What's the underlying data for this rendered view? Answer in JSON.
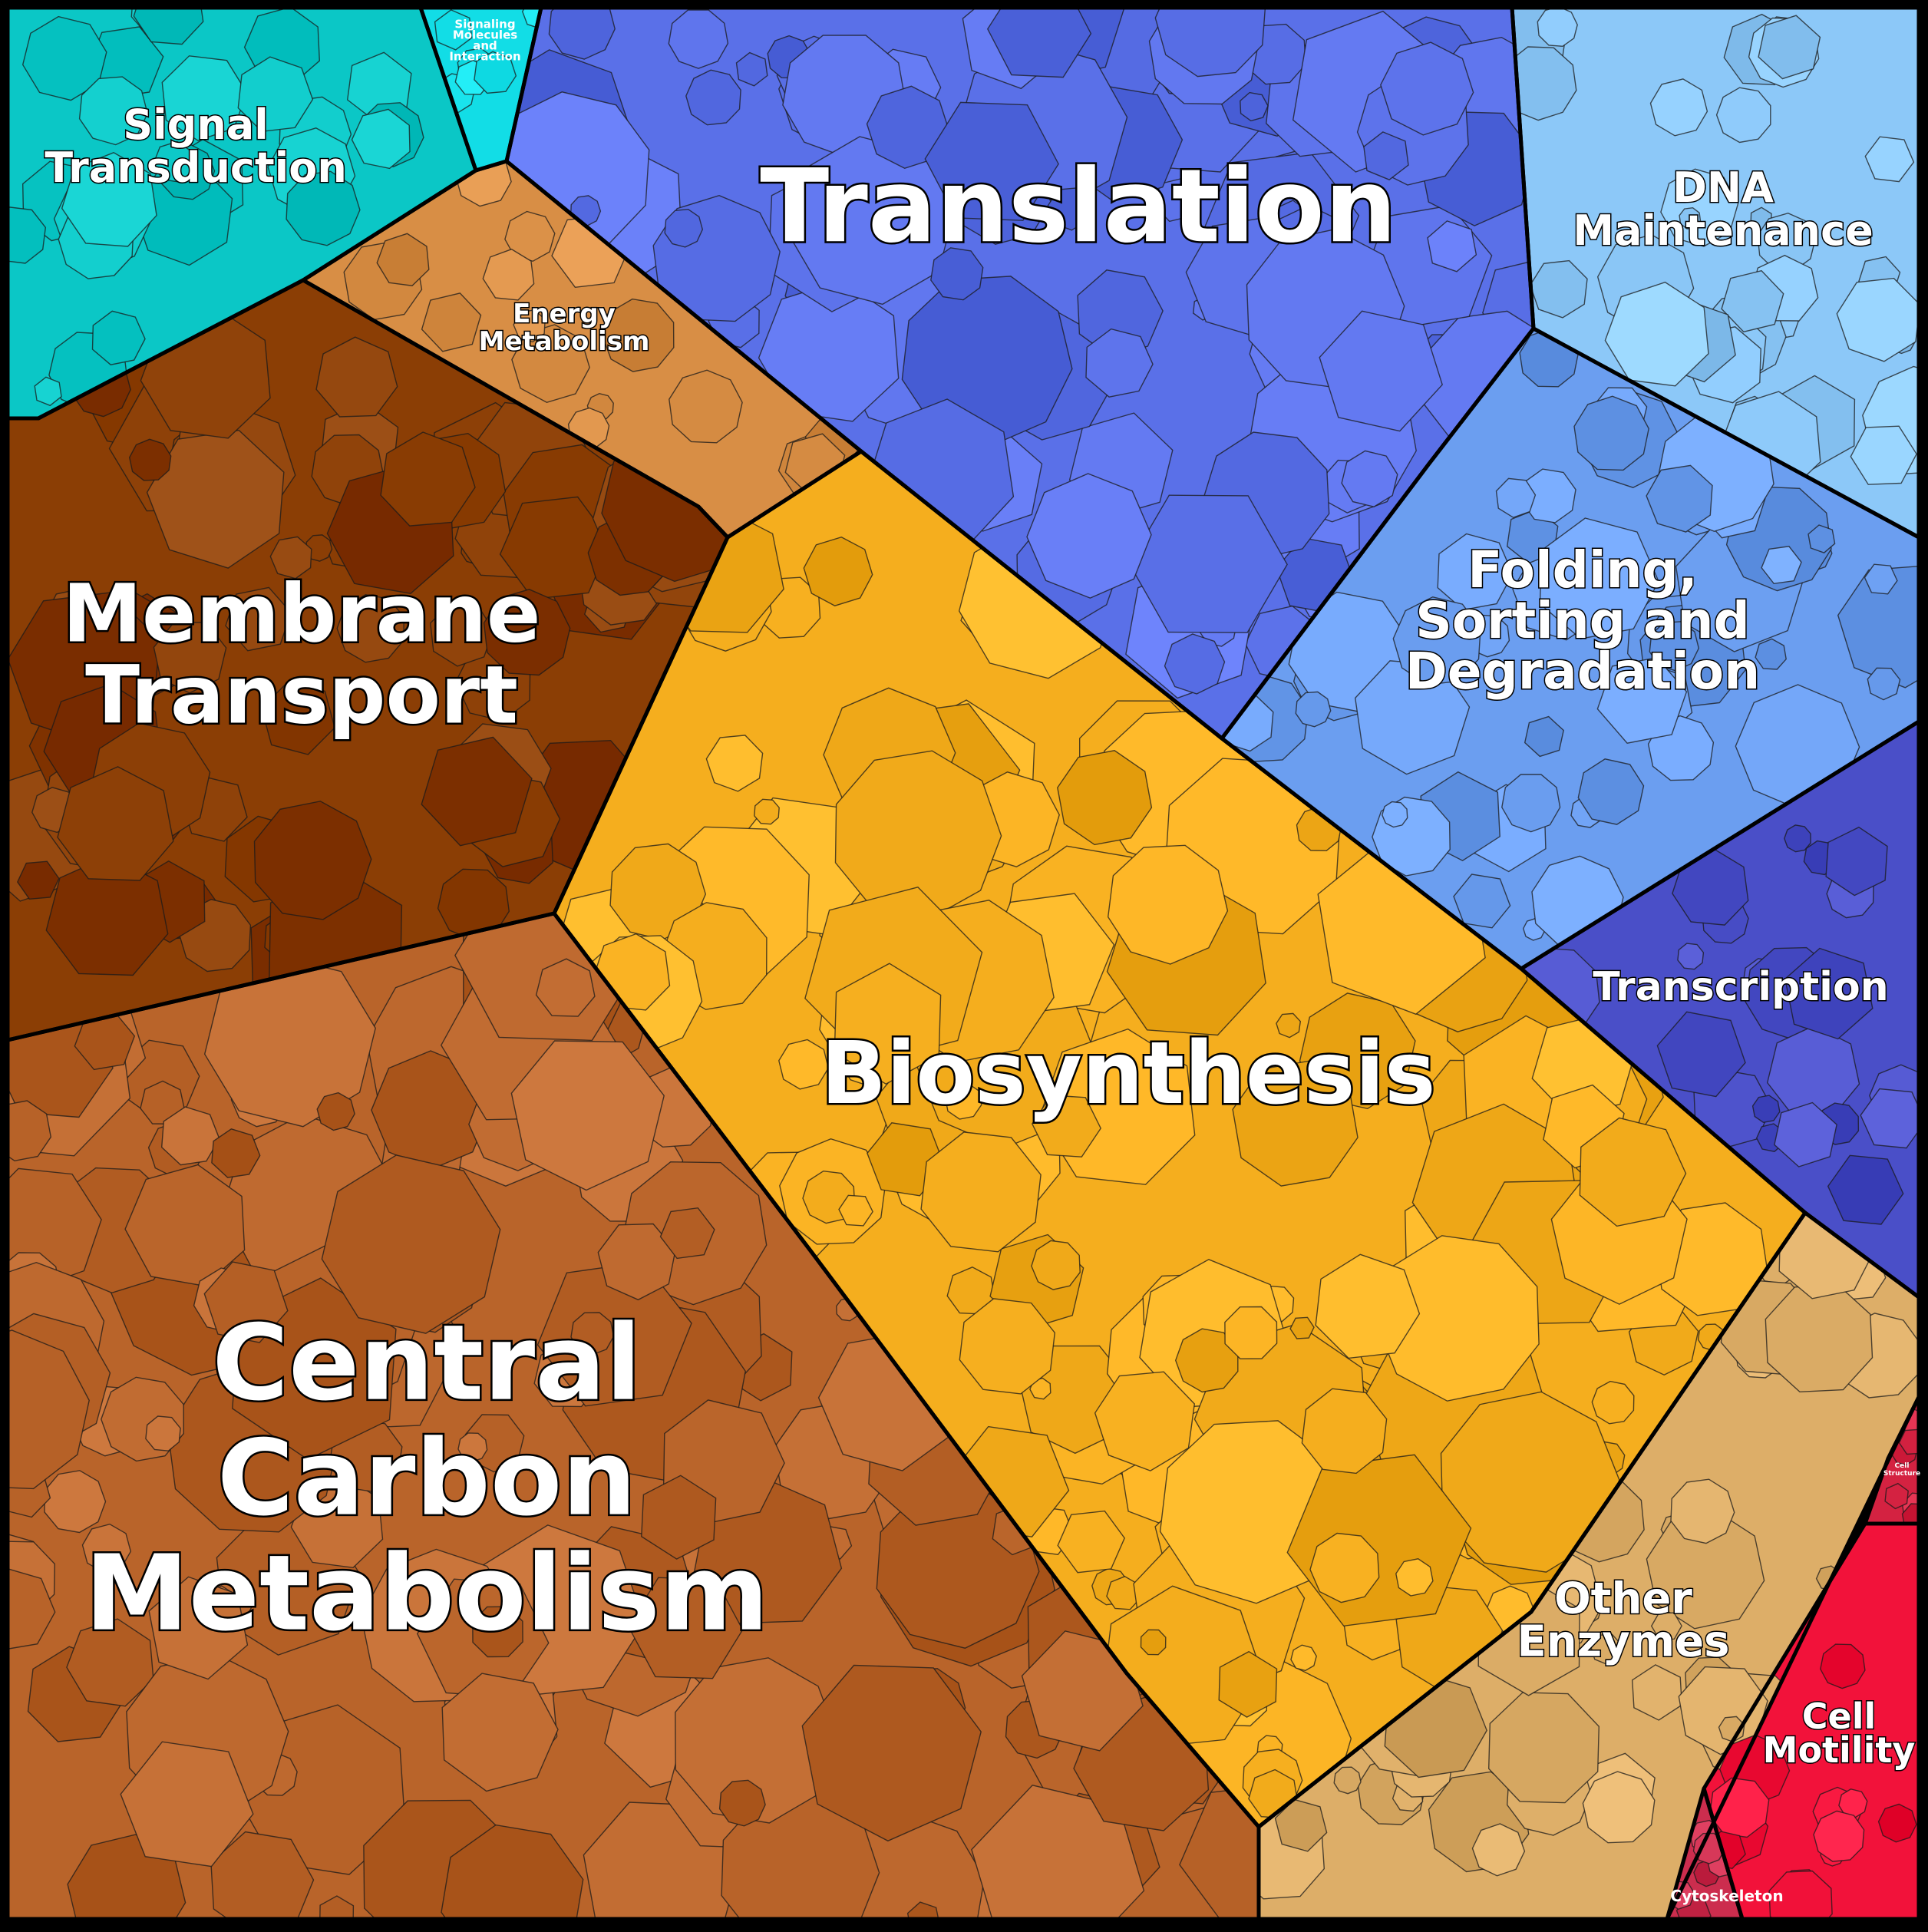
{
  "chart_data": {
    "type": "voronoi-treemap",
    "categories": [
      {
        "name": "Signal Transduction",
        "lines": [
          "Signal",
          "Transduction"
        ],
        "color": "#0BC7C6"
      },
      {
        "name": "Signaling Molecules and Interaction",
        "lines": [
          "Signaling",
          "Molecules",
          "and",
          "Interaction"
        ],
        "color": "#12DDE6"
      },
      {
        "name": "Translation",
        "lines": [
          "Translation"
        ],
        "color": "#5A70E8"
      },
      {
        "name": "DNA Maintenance",
        "lines": [
          "DNA",
          "Maintenance"
        ],
        "color": "#8CC8F8"
      },
      {
        "name": "Energy Metabolism",
        "lines": [
          "Energy",
          "Metabolism"
        ],
        "color": "#D88E45"
      },
      {
        "name": "Membrane Transport",
        "lines": [
          "Membrane",
          "Transport"
        ],
        "color": "#8B3E05"
      },
      {
        "name": "Biosynthesis",
        "lines": [
          "Biosynthesis"
        ],
        "color": "#F5AE1E"
      },
      {
        "name": "Folding, Sorting and Degradation",
        "lines": [
          "Folding,",
          "Sorting and",
          "Degradation"
        ],
        "color": "#6B9EF0"
      },
      {
        "name": "Transcription",
        "lines": [
          "Transcription"
        ],
        "color": "#4A4FC8"
      },
      {
        "name": "Central Carbon Metabolism",
        "lines": [
          "Central",
          "Carbon",
          "Metabolism"
        ],
        "color": "#B9642A"
      },
      {
        "name": "Other Enzymes",
        "lines": [
          "Other",
          "Enzymes"
        ],
        "color": "#DDAE68"
      },
      {
        "name": "Cell Motility",
        "lines": [
          "Cell",
          "Motility"
        ],
        "color": "#F2123A"
      },
      {
        "name": "Cell Structure",
        "lines": [
          "Cell",
          "Structure"
        ],
        "color": "#D42241"
      },
      {
        "name": "Cytoskeleton",
        "lines": [
          "Cytoskeleton"
        ],
        "color": "#CC2D4E"
      }
    ]
  }
}
